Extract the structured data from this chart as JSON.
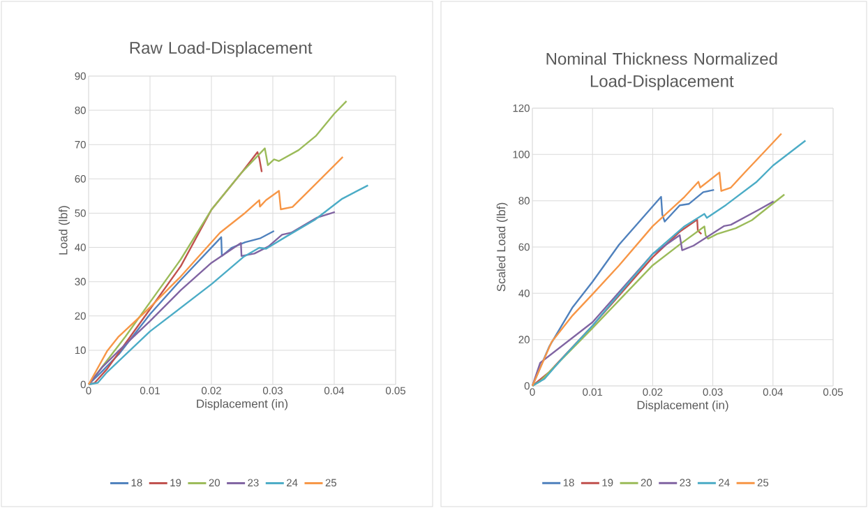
{
  "chart_data": [
    {
      "type": "line",
      "title": "Raw Load-Displacement",
      "xlabel": "Displacement (in)",
      "ylabel": "Load (lbf)",
      "xlim": [
        0,
        0.05
      ],
      "ylim": [
        0,
        90
      ],
      "xticks": [
        0,
        0.01,
        0.02,
        0.03,
        0.04,
        0.05
      ],
      "yticks": [
        0,
        10,
        20,
        30,
        40,
        50,
        60,
        70,
        80,
        90
      ],
      "grid": true,
      "legend": "bottom",
      "series": [
        {
          "name": "18",
          "color": "#4f81bd",
          "x": [
            0,
            0.002,
            0.005,
            0.01,
            0.015,
            0.0216,
            0.0217,
            0.0233,
            0.0255,
            0.028,
            0.0302
          ],
          "values": [
            0,
            3.5,
            9,
            20.5,
            30.5,
            43,
            37.5,
            39.9,
            41.5,
            42.7,
            44.8
          ]
        },
        {
          "name": "19",
          "color": "#c0504d",
          "x": [
            0,
            0.001,
            0.003,
            0.006,
            0.01,
            0.015,
            0.02,
            0.025,
            0.0275,
            0.0278,
            0.0282
          ],
          "values": [
            0,
            0.5,
            4.5,
            12,
            22,
            34.5,
            51,
            62,
            67.8,
            66,
            62
          ]
        },
        {
          "name": "20",
          "color": "#9bbb59",
          "x": [
            0,
            0.003,
            0.006,
            0.01,
            0.015,
            0.02,
            0.0248,
            0.0287,
            0.0292,
            0.0302,
            0.031,
            0.0342,
            0.037,
            0.04,
            0.042
          ],
          "values": [
            0,
            7,
            14,
            24,
            36.5,
            51,
            61.6,
            68.9,
            64,
            65.7,
            65.2,
            68.4,
            72.5,
            79,
            82.7
          ]
        },
        {
          "name": "23",
          "color": "#8064a2",
          "x": [
            0,
            0.0022,
            0.005,
            0.01,
            0.015,
            0.02,
            0.0248,
            0.0249,
            0.027,
            0.0293,
            0.0315,
            0.033,
            0.0372,
            0.0401
          ],
          "values": [
            0,
            5,
            10,
            18.5,
            27.5,
            35.5,
            41.3,
            37.5,
            38.2,
            40.3,
            43.7,
            44.3,
            48.7,
            50.3
          ]
        },
        {
          "name": "24",
          "color": "#4bacc6",
          "x": [
            0,
            0.0015,
            0.003,
            0.005,
            0.01,
            0.0201,
            0.0252,
            0.0278,
            0.0289,
            0.0323,
            0.0368,
            0.0413,
            0.0455
          ],
          "values": [
            0,
            0.5,
            3.6,
            7,
            15.5,
            29.4,
            37.2,
            39.9,
            39.6,
            43.3,
            48,
            54.2,
            58.1
          ]
        },
        {
          "name": "25",
          "color": "#f79646",
          "x": [
            0,
            0.003,
            0.0048,
            0.01,
            0.015,
            0.0214,
            0.0255,
            0.0278,
            0.0279,
            0.0289,
            0.031,
            0.0313,
            0.0332,
            0.0353,
            0.0414
          ],
          "values": [
            0,
            9.7,
            13.8,
            22.5,
            31.5,
            44.3,
            50.1,
            53.8,
            51.9,
            53.8,
            56.5,
            51.1,
            51.8,
            55.5,
            66.4
          ]
        }
      ]
    },
    {
      "type": "line",
      "title": "Nominal Thickness Normalized Load-Displacement",
      "xlabel": "Displacement (in)",
      "ylabel": "Scaled Load (lbf)",
      "xlim": [
        0,
        0.05
      ],
      "ylim": [
        0,
        120
      ],
      "xticks": [
        0,
        0.01,
        0.02,
        0.03,
        0.04,
        0.05
      ],
      "yticks": [
        0,
        20,
        40,
        60,
        80,
        100,
        120
      ],
      "grid": true,
      "legend": "bottom",
      "series": [
        {
          "name": "18",
          "color": "#4f81bd",
          "x": [
            0,
            0.0028,
            0.0067,
            0.01,
            0.0144,
            0.0214,
            0.0216,
            0.022,
            0.0245,
            0.026,
            0.0284,
            0.0302
          ],
          "values": [
            0,
            17,
            34,
            45,
            61,
            81.7,
            74,
            71,
            78,
            78.6,
            83.7,
            84.7
          ]
        },
        {
          "name": "19",
          "color": "#c0504d",
          "x": [
            0,
            0.0028,
            0.01,
            0.02,
            0.0245,
            0.0274,
            0.0275,
            0.0281
          ],
          "values": [
            0,
            6,
            26,
            55.6,
            66.6,
            71.8,
            67.1,
            65.6
          ]
        },
        {
          "name": "20",
          "color": "#9bbb59",
          "x": [
            0,
            0.0013,
            0.01,
            0.02,
            0.0245,
            0.0286,
            0.0288,
            0.0292,
            0.0307,
            0.0338,
            0.0365,
            0.0392,
            0.0419
          ],
          "values": [
            0,
            2,
            25,
            52.1,
            61.1,
            68.9,
            65.1,
            63.6,
            65.6,
            68.1,
            71.6,
            77.2,
            82.7
          ]
        },
        {
          "name": "23",
          "color": "#8064a2",
          "x": [
            0,
            0.0013,
            0.01,
            0.02,
            0.0245,
            0.0249,
            0.0268,
            0.0319,
            0.033,
            0.0377,
            0.0401
          ],
          "values": [
            0,
            10,
            27.5,
            57,
            65.1,
            58.6,
            60.6,
            69.1,
            69.6,
            76.2,
            79.7
          ]
        },
        {
          "name": "24",
          "color": "#4bacc6",
          "x": [
            0,
            0.002,
            0.005,
            0.01,
            0.02,
            0.0253,
            0.0286,
            0.029,
            0.0322,
            0.0373,
            0.04,
            0.0454
          ],
          "values": [
            0,
            3,
            12,
            26,
            57,
            69,
            74.3,
            72.6,
            78.2,
            88.2,
            95.2,
            106
          ]
        },
        {
          "name": "25",
          "color": "#f79646",
          "x": [
            0,
            0.0032,
            0.0067,
            0.01,
            0.0144,
            0.02,
            0.0253,
            0.0276,
            0.0279,
            0.0311,
            0.0314,
            0.033,
            0.0353,
            0.0384,
            0.0414
          ],
          "values": [
            0,
            19,
            30.5,
            39.6,
            52,
            69,
            81.7,
            88.2,
            85.7,
            92.2,
            84.2,
            85.7,
            92.2,
            100.7,
            109
          ]
        }
      ]
    }
  ]
}
